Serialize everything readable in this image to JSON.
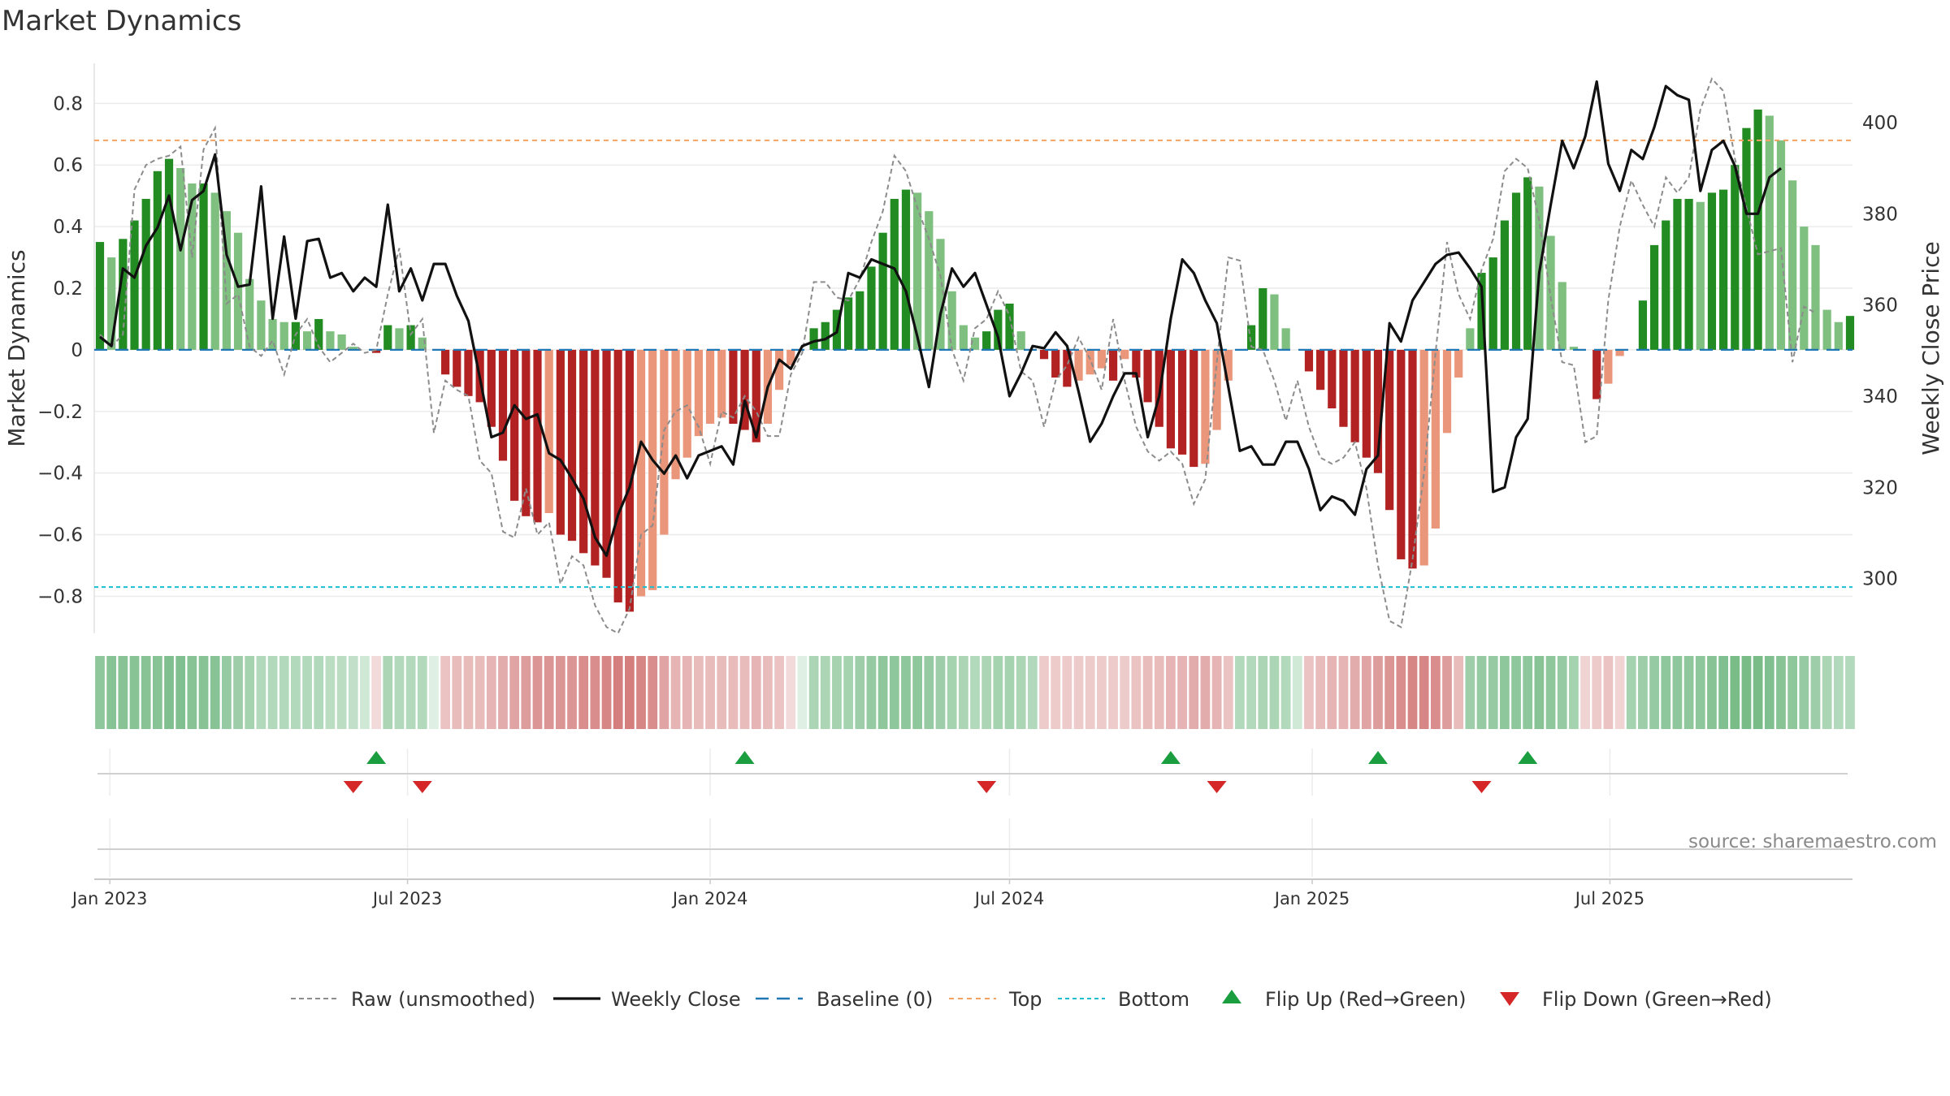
{
  "title": "Market Dynamics",
  "source": "source: sharemaestro.com",
  "colors": {
    "strong_green": "#228B22",
    "light_green": "#7FBF7F",
    "strong_red": "#B22222",
    "light_red": "#E9967A",
    "close_line": "#111111",
    "raw_line": "#8c8c8c",
    "baseline": "#1f77b4",
    "top_line": "#f4a261",
    "bottom_line": "#17becf",
    "flip_up": "#1a9e3f",
    "flip_down": "#d62728"
  },
  "chart_data": {
    "type": "bar",
    "title": "Market Dynamics",
    "ylabel": "Market Dynamics",
    "y2label": "Weekly Close Price",
    "ylim": [
      -0.92,
      0.93
    ],
    "y2lim": [
      288,
      413
    ],
    "yticks": [
      "0.8",
      "0.6",
      "0.4",
      "0.2",
      "0",
      "−0.2",
      "−0.4",
      "−0.6",
      "−0.8"
    ],
    "y2ticks": [
      "400",
      "380",
      "360",
      "340",
      "320",
      "300"
    ],
    "xticks": [
      "Jan 2023",
      "Jul 2023",
      "Jan 2024",
      "Jul 2024",
      "Jan 2025",
      "Jul 2025"
    ],
    "xtick_dates": [
      "2023-01-01",
      "2023-07-01",
      "2024-01-01",
      "2024-07-01",
      "2025-01-01",
      "2025-07-01"
    ],
    "first_week": "2022-12-26",
    "top_level": 0.68,
    "bottom_level": -0.77,
    "baseline": 0,
    "grid": true,
    "legend_position": "bottom",
    "legend": [
      "Raw (unsmoothed)",
      "Weekly Close",
      "Baseline (0)",
      "Top",
      "Bottom",
      "Flip Up (Red→Green)",
      "Flip Down (Green→Red)"
    ],
    "series": [
      {
        "name": "Market Dynamics",
        "values": [
          0.35,
          0.3,
          0.36,
          0.42,
          0.49,
          0.58,
          0.62,
          0.59,
          0.54,
          0.54,
          0.51,
          0.45,
          0.38,
          0.23,
          0.16,
          0.1,
          0.09,
          0.09,
          0.06,
          0.1,
          0.06,
          0.05,
          0.01,
          0.0,
          -0.01,
          0.08,
          0.07,
          0.08,
          0.04,
          0.0,
          -0.08,
          -0.12,
          -0.15,
          -0.17,
          -0.25,
          -0.36,
          -0.49,
          -0.54,
          -0.56,
          -0.53,
          -0.6,
          -0.62,
          -0.66,
          -0.7,
          -0.74,
          -0.82,
          -0.85,
          -0.8,
          -0.78,
          -0.6,
          -0.42,
          -0.35,
          -0.28,
          -0.24,
          -0.22,
          -0.24,
          -0.26,
          -0.3,
          -0.24,
          -0.13,
          -0.05,
          0.0,
          0.07,
          0.09,
          0.13,
          0.17,
          0.19,
          0.27,
          0.38,
          0.49,
          0.52,
          0.51,
          0.45,
          0.36,
          0.19,
          0.08,
          0.04,
          0.06,
          0.13,
          0.15,
          0.06,
          0.0,
          -0.03,
          -0.09,
          -0.12,
          -0.1,
          -0.08,
          -0.06,
          -0.1,
          -0.03,
          -0.09,
          -0.17,
          -0.25,
          -0.32,
          -0.34,
          -0.38,
          -0.37,
          -0.26,
          -0.1,
          0.0,
          0.08,
          0.2,
          0.18,
          0.07,
          0.0,
          -0.07,
          -0.13,
          -0.19,
          -0.25,
          -0.3,
          -0.35,
          -0.4,
          -0.52,
          -0.68,
          -0.71,
          -0.7,
          -0.58,
          -0.27,
          -0.09,
          0.07,
          0.25,
          0.3,
          0.42,
          0.51,
          0.56,
          0.53,
          0.37,
          0.22,
          0.01,
          0.0,
          -0.16,
          -0.11,
          -0.02,
          0.0,
          0.16,
          0.34,
          0.42,
          0.49,
          0.49,
          0.48,
          0.51,
          0.52,
          0.6,
          0.72,
          0.78,
          0.76,
          0.68,
          0.55,
          0.4,
          0.34,
          0.13,
          0.09,
          0.11
        ]
      },
      {
        "name": "Raw (unsmoothed)",
        "values": [
          0.05,
          0.01,
          0.05,
          0.52,
          0.6,
          0.62,
          0.63,
          0.66,
          0.3,
          0.65,
          0.72,
          0.15,
          0.18,
          0.01,
          -0.02,
          0.03,
          -0.08,
          0.05,
          0.1,
          0.01,
          -0.04,
          -0.01,
          0.02,
          -0.01,
          0.0,
          0.18,
          0.33,
          0.05,
          0.1,
          -0.27,
          -0.1,
          -0.13,
          -0.15,
          -0.36,
          -0.4,
          -0.59,
          -0.61,
          -0.45,
          -0.6,
          -0.56,
          -0.76,
          -0.67,
          -0.7,
          -0.83,
          -0.9,
          -0.92,
          -0.84,
          -0.6,
          -0.57,
          -0.26,
          -0.2,
          -0.18,
          -0.25,
          -0.37,
          -0.2,
          -0.22,
          -0.15,
          -0.2,
          -0.28,
          -0.28,
          -0.08,
          -0.01,
          0.22,
          0.22,
          0.17,
          0.16,
          0.23,
          0.35,
          0.45,
          0.63,
          0.58,
          0.46,
          0.36,
          0.24,
          0.0,
          -0.1,
          0.07,
          0.1,
          0.19,
          0.11,
          -0.07,
          -0.1,
          -0.25,
          -0.1,
          -0.05,
          0.04,
          -0.03,
          -0.13,
          0.1,
          -0.1,
          -0.25,
          -0.33,
          -0.36,
          -0.33,
          -0.37,
          -0.5,
          -0.42,
          -0.04,
          0.3,
          0.29,
          0.01,
          0.0,
          -0.1,
          -0.23,
          -0.1,
          -0.25,
          -0.35,
          -0.37,
          -0.35,
          -0.3,
          -0.45,
          -0.7,
          -0.88,
          -0.9,
          -0.68,
          -0.4,
          -0.01,
          0.35,
          0.18,
          0.1,
          0.26,
          0.36,
          0.58,
          0.62,
          0.59,
          0.42,
          0.17,
          -0.04,
          -0.05,
          -0.3,
          -0.28,
          0.16,
          0.4,
          0.55,
          0.47,
          0.4,
          0.56,
          0.51,
          0.56,
          0.78,
          0.88,
          0.84,
          0.62,
          0.46,
          0.31,
          0.32,
          0.33,
          -0.04,
          0.14,
          0.12
        ]
      },
      {
        "name": "Weekly Close",
        "values": [
          353.0,
          351.0,
          368.0,
          366.0,
          373.0,
          377.0,
          384.0,
          372.0,
          383.0,
          385.0,
          393.0,
          371.0,
          364.0,
          364.5,
          386.0,
          357.0,
          375.0,
          357.0,
          374.0,
          374.5,
          366.0,
          367.0,
          363.0,
          366.0,
          364.0,
          382.0,
          363.0,
          368.0,
          361.0,
          369.0,
          369.0,
          362.0,
          356.5,
          344.0,
          331.0,
          332.0,
          338.0,
          335.0,
          336.0,
          327.5,
          326.0,
          322.0,
          317.5,
          309.0,
          305.0,
          314.0,
          320.0,
          330.0,
          326.0,
          323.0,
          327.0,
          322.0,
          327.0,
          328.0,
          329.0,
          325.0,
          339.0,
          331.0,
          342.0,
          348.0,
          346.0,
          351.0,
          352.0,
          352.5,
          354.0,
          367.0,
          366.0,
          370.0,
          369.0,
          368.0,
          363.0,
          353.0,
          342.0,
          358.0,
          368.0,
          364.0,
          367.0,
          360.0,
          353.0,
          340.0,
          345.0,
          351.0,
          350.5,
          354.0,
          351.0,
          341.0,
          330.0,
          334.0,
          340.0,
          345.0,
          345.0,
          331.0,
          340.0,
          357.0,
          370.0,
          367.0,
          361.0,
          356.0,
          342.0,
          328.0,
          329.0,
          325.0,
          325.0,
          330.0,
          330.0,
          324.0,
          315.0,
          318.0,
          317.0,
          314.0,
          324.0,
          327.0,
          356.0,
          352.0,
          361.0,
          365.0,
          369.0,
          371.0,
          371.5,
          368.0,
          364.0,
          319.0,
          320.0,
          331.0,
          335.0,
          367.0,
          382.0,
          396.0,
          390.0,
          397.0,
          409.0,
          391.0,
          385.0,
          394.0,
          392.0,
          399.0,
          408.0,
          406.0,
          405.0,
          385.0,
          394.0,
          396.0,
          390.5,
          380.0,
          380.0,
          388.0,
          390.0
        ]
      }
    ],
    "state_strip": {
      "name": "State strip",
      "values": [
        0.55,
        0.6,
        0.6,
        0.6,
        0.6,
        0.6,
        0.65,
        0.65,
        0.6,
        0.6,
        0.6,
        0.5,
        0.45,
        0.4,
        0.3,
        0.3,
        0.3,
        0.3,
        0.3,
        0.3,
        0.25,
        0.25,
        0.2,
        0.1,
        -0.1,
        0.35,
        0.3,
        0.3,
        0.3,
        0.0,
        -0.25,
        -0.3,
        -0.3,
        -0.3,
        -0.35,
        -0.4,
        -0.45,
        -0.5,
        -0.55,
        -0.55,
        -0.55,
        -0.55,
        -0.6,
        -0.6,
        -0.65,
        -0.7,
        -0.7,
        -0.65,
        -0.6,
        -0.45,
        -0.35,
        -0.35,
        -0.3,
        -0.3,
        -0.3,
        -0.3,
        -0.3,
        -0.35,
        -0.3,
        -0.25,
        -0.1,
        0.0,
        0.35,
        0.35,
        0.4,
        0.4,
        0.45,
        0.5,
        0.55,
        0.55,
        0.55,
        0.55,
        0.5,
        0.45,
        0.4,
        0.35,
        0.3,
        0.35,
        0.4,
        0.4,
        0.35,
        0.3,
        -0.2,
        -0.2,
        -0.2,
        -0.2,
        -0.2,
        -0.2,
        -0.2,
        -0.2,
        -0.25,
        -0.3,
        -0.3,
        -0.35,
        -0.35,
        -0.4,
        -0.4,
        -0.35,
        -0.25,
        0.3,
        0.3,
        0.35,
        0.35,
        0.3,
        0.1,
        -0.25,
        -0.3,
        -0.35,
        -0.35,
        -0.4,
        -0.45,
        -0.5,
        -0.55,
        -0.6,
        -0.65,
        -0.65,
        -0.6,
        -0.5,
        -0.3,
        0.45,
        0.5,
        0.5,
        0.55,
        0.55,
        0.55,
        0.6,
        0.55,
        0.5,
        0.4,
        -0.15,
        -0.2,
        -0.25,
        -0.15,
        0.4,
        0.45,
        0.5,
        0.55,
        0.55,
        0.55,
        0.55,
        0.6,
        0.65,
        0.7,
        0.7,
        0.7,
        0.65,
        0.6,
        0.55,
        0.5,
        0.45,
        0.35,
        0.3,
        0.3
      ]
    },
    "flips_up": [
      "2023-06-12",
      "2024-01-22",
      "2024-10-07",
      "2025-02-10",
      "2025-05-12"
    ],
    "flips_down": [
      "2023-05-29",
      "2023-07-10",
      "2024-06-17",
      "2024-11-04",
      "2025-04-14"
    ]
  }
}
